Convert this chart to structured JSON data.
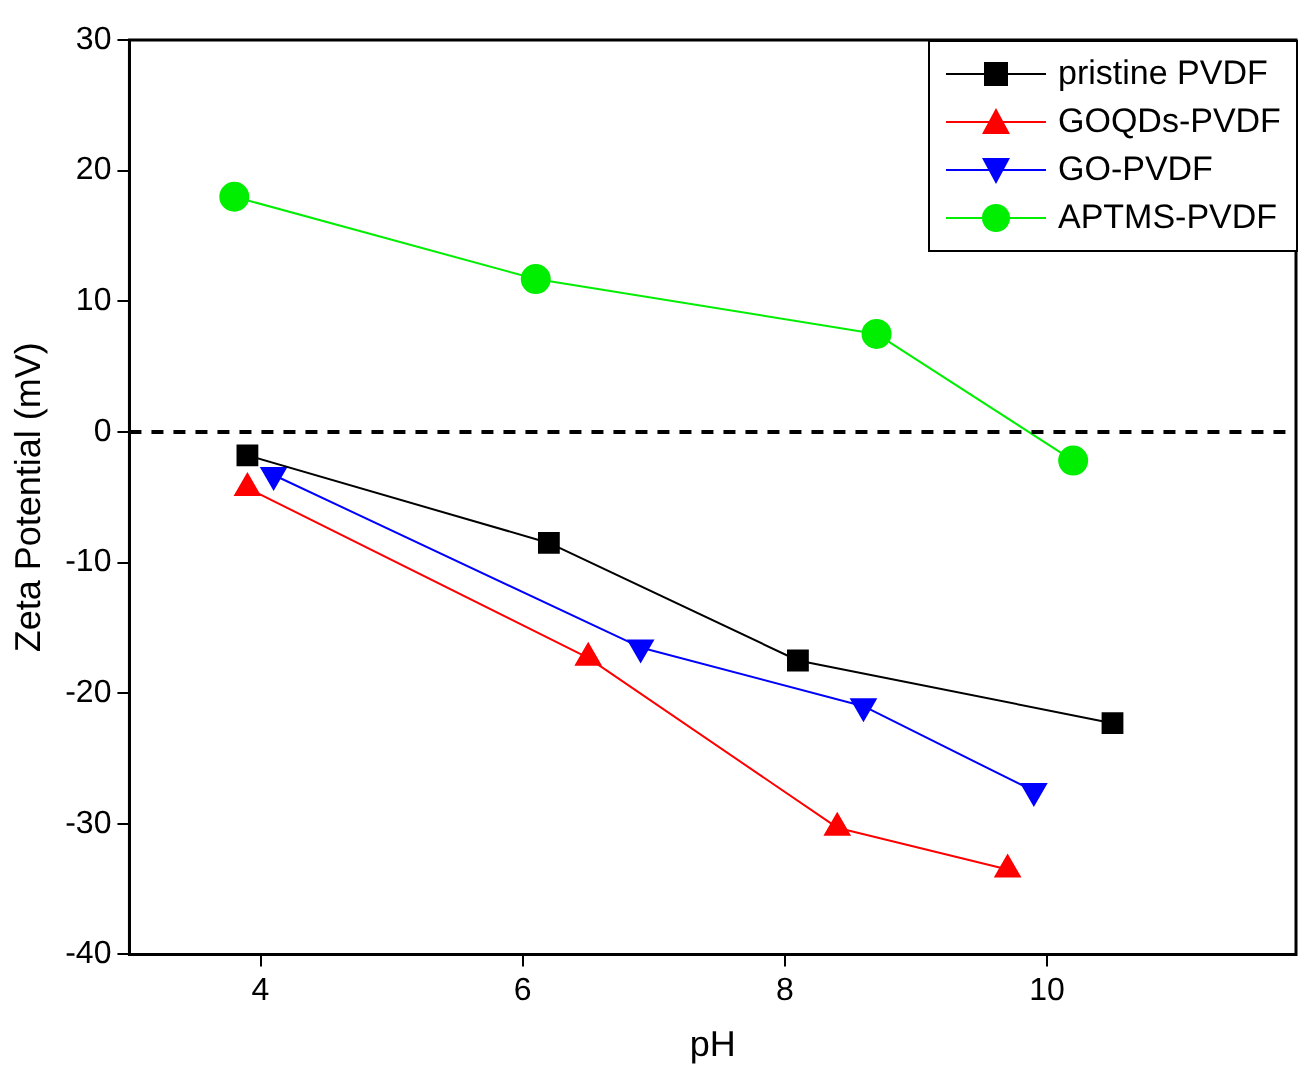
{
  "chart_data": {
    "type": "line",
    "xlabel": "pH",
    "ylabel": "Zeta Potential (mV)",
    "xlim": [
      3,
      11.9
    ],
    "xticks": [
      4,
      6,
      8,
      10
    ],
    "ylim": [
      -40,
      30
    ],
    "yticks": [
      -40,
      -30,
      -20,
      -10,
      0,
      10,
      20,
      30
    ],
    "grid": false,
    "legend": "top right",
    "ref_lines": [
      {
        "axis": "y",
        "value": 0,
        "color": "#000000",
        "line_style": "dashed"
      }
    ],
    "series": [
      {
        "name": "pristine PVDF",
        "color": "#000000",
        "marker": "square",
        "x": [
          3.9,
          6.2,
          8.1,
          10.5
        ],
        "values": [
          -1.8,
          -8.5,
          -17.5,
          -22.3
        ]
      },
      {
        "name": "GOQDs-PVDF",
        "color": "#ff0000",
        "marker": "triangle",
        "x": [
          3.9,
          6.5,
          8.4,
          9.7
        ],
        "values": [
          -4.3,
          -17.3,
          -30.3,
          -33.5
        ]
      },
      {
        "name": "GO-PVDF",
        "color": "#0000ff",
        "marker": "triangle-down",
        "x": [
          4.1,
          6.9,
          8.6,
          9.9
        ],
        "values": [
          -3.3,
          -16.5,
          -21,
          -27.5
        ]
      },
      {
        "name": "APTMS-PVDF",
        "color": "#00ee00",
        "marker": "circle",
        "x": [
          3.8,
          6.1,
          8.7,
          10.2
        ],
        "values": [
          18,
          11.7,
          7.5,
          -2.2
        ]
      }
    ]
  }
}
